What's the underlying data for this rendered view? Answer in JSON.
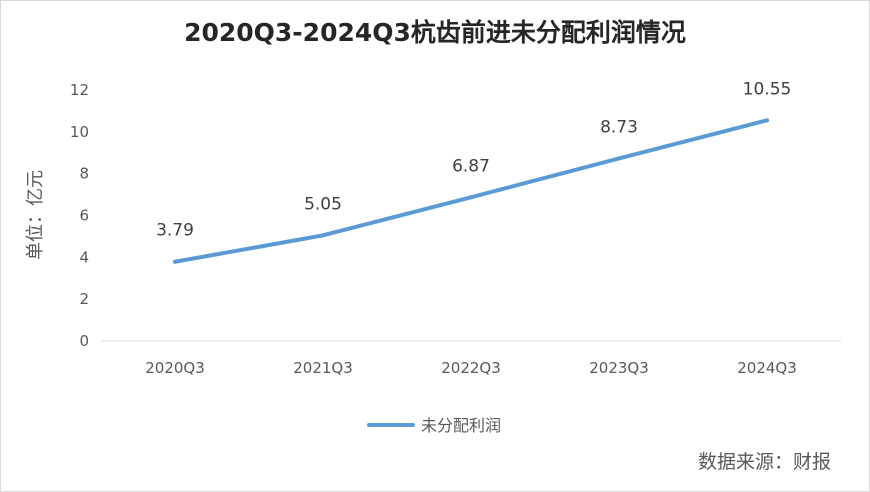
{
  "chart_data": {
    "type": "line",
    "title": "2020Q3-2024Q3杭齿前进未分配利润情况",
    "ylabel": "单位：亿元",
    "xlabel": "",
    "categories": [
      "2020Q3",
      "2021Q3",
      "2022Q3",
      "2023Q3",
      "2024Q3"
    ],
    "y_ticks": [
      "0",
      "2",
      "4",
      "6",
      "8",
      "10",
      "12"
    ],
    "ylim": [
      0,
      12
    ],
    "series": [
      {
        "name": "未分配利润",
        "values": [
          3.79,
          5.05,
          6.87,
          8.73,
          10.55
        ],
        "labels": [
          "3.79",
          "5.05",
          "6.87",
          "8.73",
          "10.55"
        ],
        "color": "#5b9bd5"
      }
    ],
    "grid": false,
    "legend": "bottom"
  },
  "source": "数据来源：财报"
}
